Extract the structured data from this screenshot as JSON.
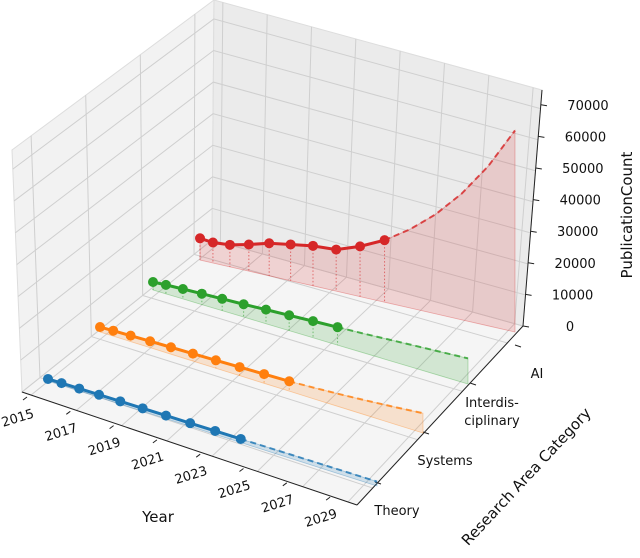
{
  "chart_data": {
    "type": "line",
    "projection": "3d",
    "xlabel": "Year",
    "ylabel": "Research Area Category",
    "zlabel": "PublicationCount",
    "x_ticks": [
      "2015",
      "2017",
      "2019",
      "2021",
      "2023",
      "2025",
      "2027",
      "2029"
    ],
    "y_ticks": [
      "Theory",
      "Systems",
      "Interdis-\nciplinary",
      "AI"
    ],
    "z_ticks": [
      "0",
      "10000",
      "20000",
      "30000",
      "40000",
      "50000",
      "60000",
      "70000"
    ],
    "zlim": [
      0,
      70000
    ],
    "grid": true,
    "x_actual": [
      2015,
      2016,
      2017,
      2018,
      2019,
      2020,
      2021,
      2022,
      2023,
      2024
    ],
    "x_projected": [
      2024,
      2025,
      2026,
      2027,
      2028,
      2029
    ],
    "series": [
      {
        "category": "Theory",
        "color": "#1f77b4",
        "actual": [
          600,
          650,
          700,
          750,
          800,
          850,
          900,
          950,
          1000,
          1050
        ],
        "projected": [
          1050,
          1100,
          1150,
          1200,
          1250,
          1300
        ]
      },
      {
        "category": "Systems",
        "color": "#ff7f0e",
        "actual": [
          1500,
          1650,
          1800,
          1950,
          2100,
          2250,
          2400,
          2600,
          2800,
          3000
        ],
        "projected": [
          3000,
          3400,
          3900,
          4500,
          5200,
          6000
        ]
      },
      {
        "category": "Interdisciplinary",
        "color": "#2ca02c",
        "actual": [
          2500,
          2800,
          3100,
          3400,
          3700,
          4000,
          4400,
          4800,
          5200,
          5600
        ],
        "projected": [
          5600,
          6000,
          6500,
          7000,
          7500,
          8000
        ]
      },
      {
        "category": "AI",
        "color": "#d62728",
        "actual": [
          7000,
          6600,
          7100,
          8600,
          10500,
          11700,
          12900,
          13400,
          16200,
          20000
        ],
        "projected": [
          20000,
          25300,
          32000,
          40600,
          51400,
          65000
        ]
      }
    ]
  }
}
